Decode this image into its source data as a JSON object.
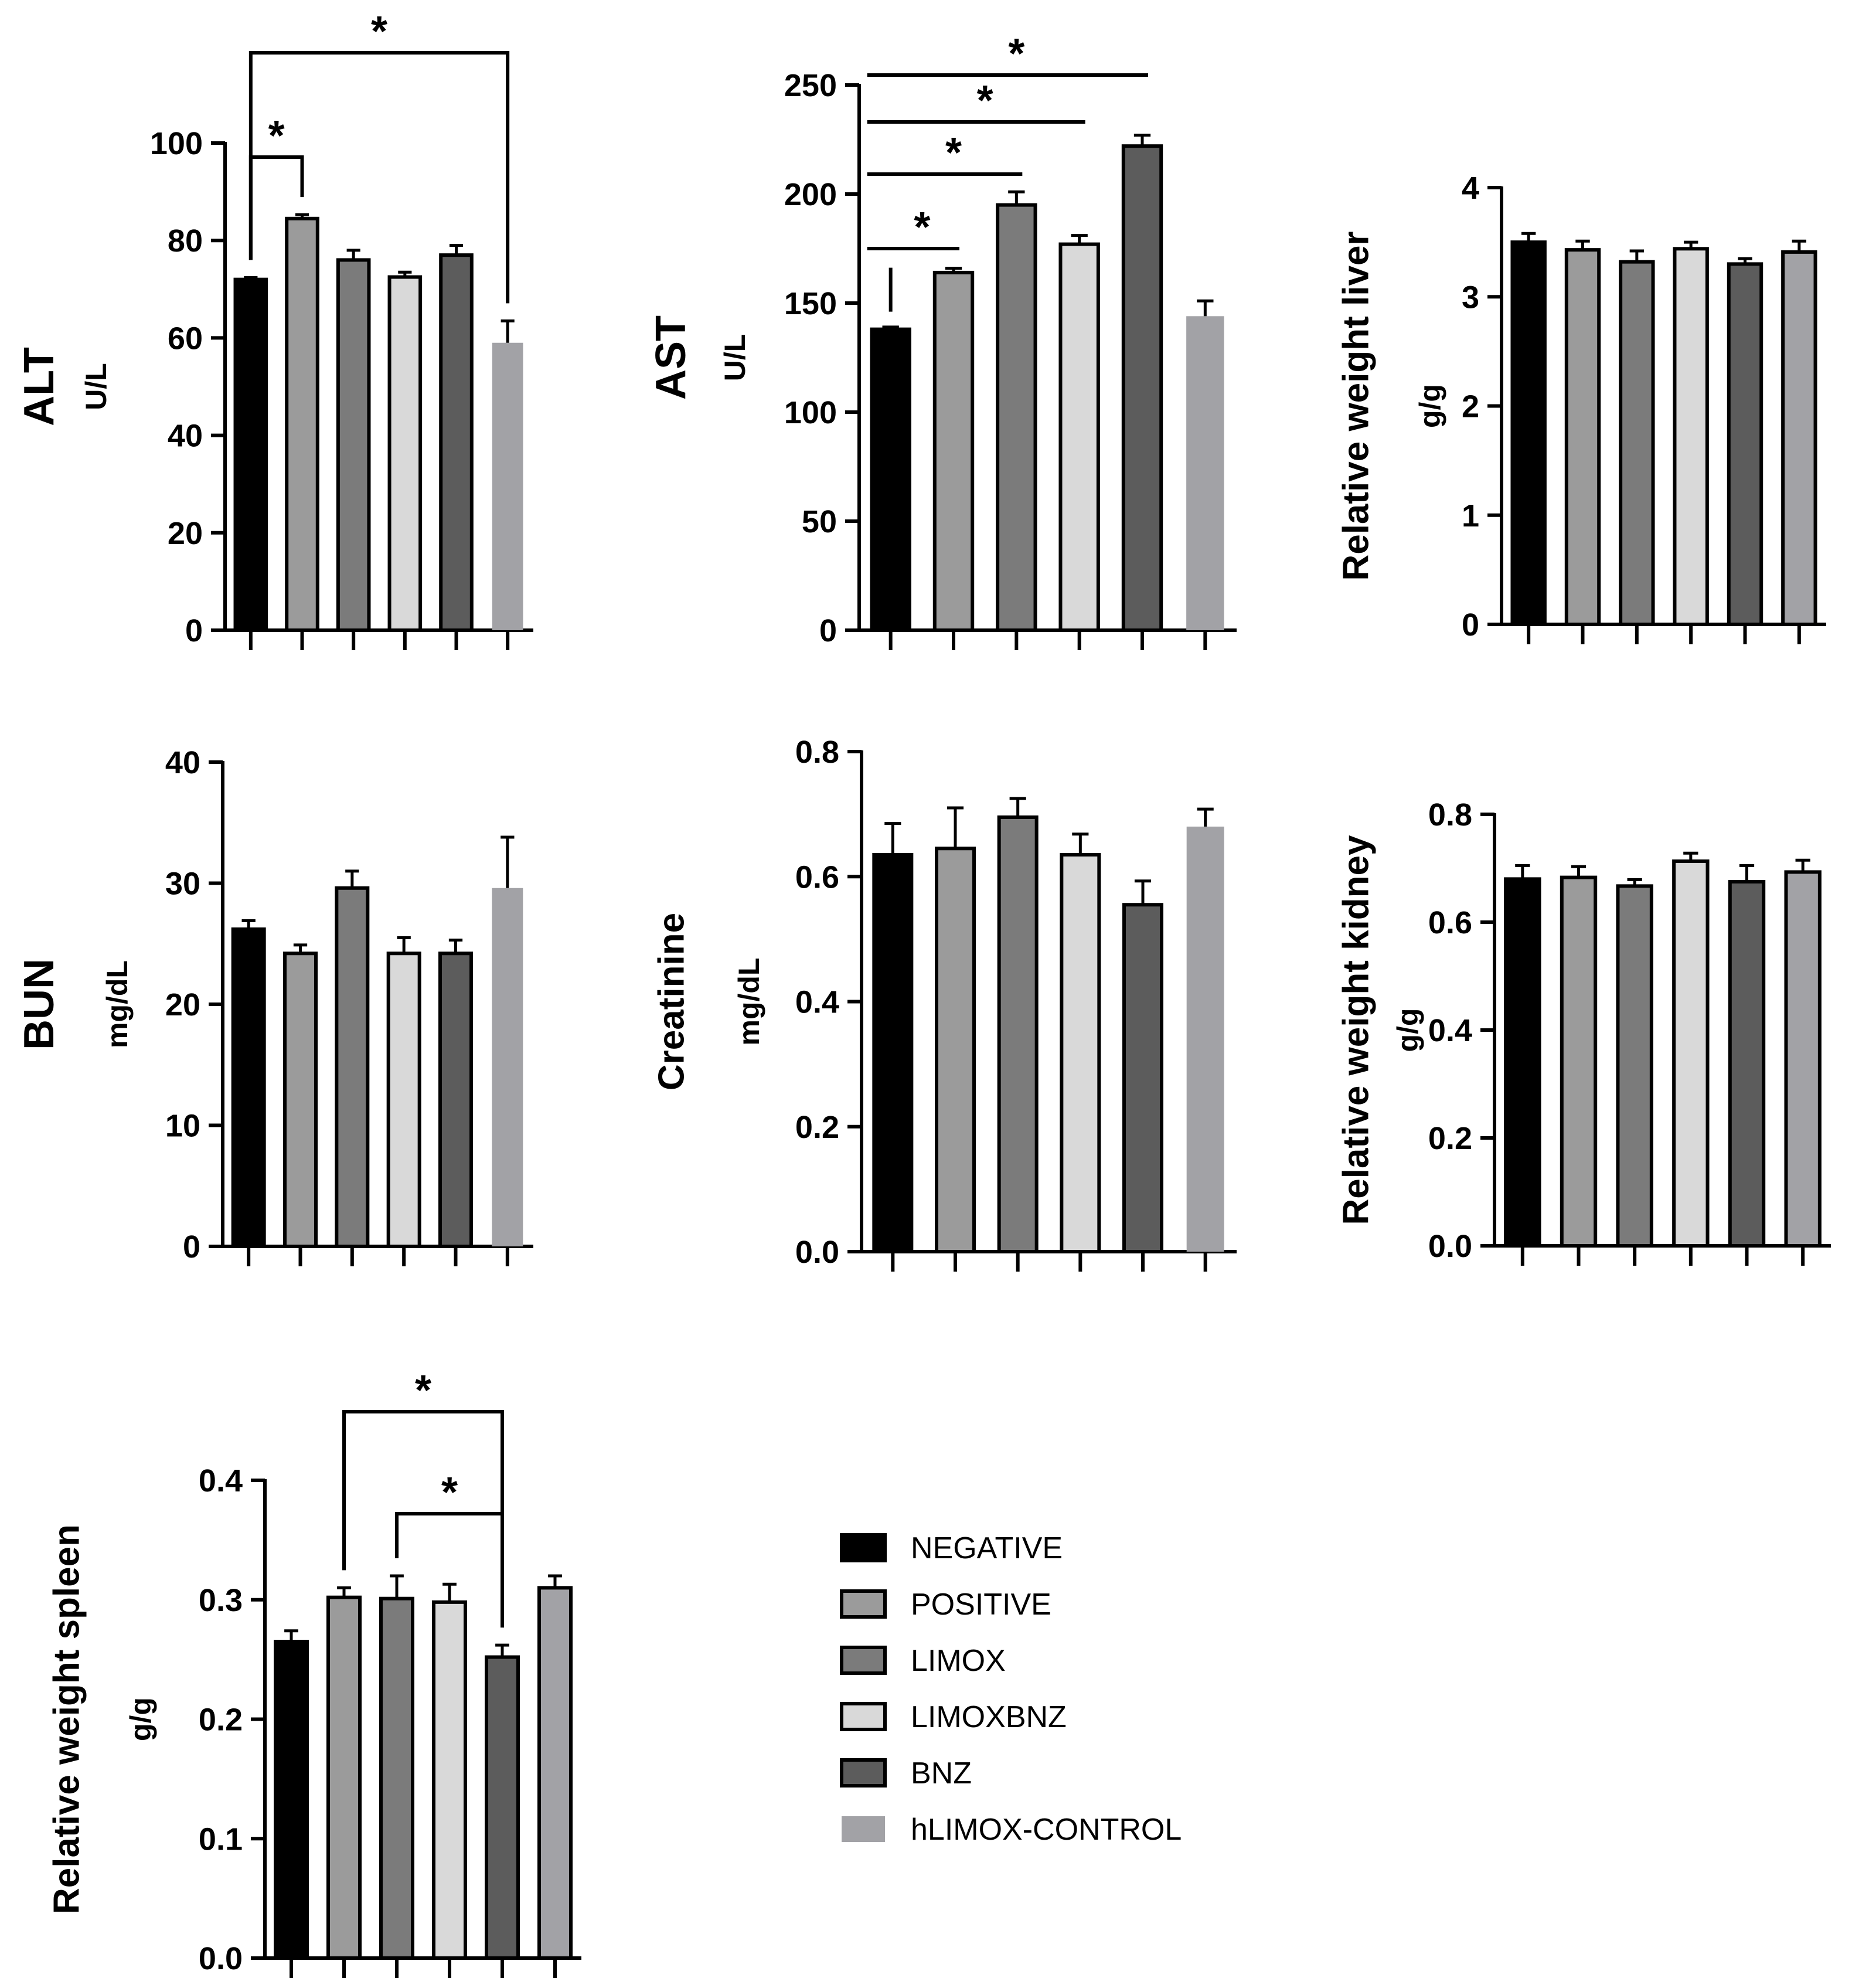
{
  "groups": [
    "NEGATIVE",
    "POSITIVE",
    "LIMOX",
    "LIMOXBNZ",
    "BNZ",
    "hLIMOX-CONTROL"
  ],
  "colors": {
    "NEGATIVE": "#000000",
    "POSITIVE": "#9b9b9b",
    "LIMOX": "#7b7b7b",
    "LIMOXBNZ": "#d9d9d9",
    "BNZ": "#5c5c5c",
    "hLIMOX-CONTROL": "#a2a2a6"
  },
  "legend": {
    "items": [
      "NEGATIVE",
      "POSITIVE",
      "LIMOX",
      "LIMOXBNZ",
      "BNZ",
      "hLIMOX-CONTROL"
    ]
  },
  "chart_data": [
    {
      "id": "alt",
      "type": "bar",
      "title": "ALT",
      "ylabel": "U/L",
      "categories": [
        "NEGATIVE",
        "POSITIVE",
        "LIMOX",
        "LIMOXBNZ",
        "BNZ",
        "hLIMOX-CONTROL"
      ],
      "values": [
        72,
        84.5,
        76,
        72.5,
        77,
        59
      ],
      "errors": [
        0.4,
        0.8,
        2,
        1,
        2,
        4.5
      ],
      "ylim": [
        0,
        100
      ],
      "yticks": [
        0,
        20,
        40,
        60,
        80,
        100
      ],
      "ytick_labels": [
        "0",
        "20",
        "40",
        "60",
        "80",
        "100"
      ],
      "significance": [
        {
          "from": 0,
          "to": 1,
          "label": "*"
        },
        {
          "from": 0,
          "to": 5,
          "label": "*"
        }
      ]
    },
    {
      "id": "ast",
      "type": "bar",
      "title": "AST",
      "ylabel": "U/L",
      "categories": [
        "NEGATIVE",
        "POSITIVE",
        "LIMOX",
        "LIMOXBNZ",
        "BNZ",
        "hLIMOX-CONTROL"
      ],
      "values": [
        138,
        164,
        195,
        177,
        222,
        144
      ],
      "errors": [
        1,
        2,
        6,
        4,
        5,
        7
      ],
      "ylim": [
        0,
        250
      ],
      "yticks": [
        0,
        50,
        100,
        150,
        200,
        250
      ],
      "ytick_labels": [
        "0",
        "50",
        "100",
        "150",
        "200",
        "250"
      ],
      "significance": [
        {
          "from": 0,
          "to": 1,
          "label": "*"
        },
        {
          "from": 0,
          "to": 2,
          "label": "*"
        },
        {
          "from": 0,
          "to": 3,
          "label": "*"
        },
        {
          "from": 0,
          "to": 4,
          "label": "*"
        }
      ]
    },
    {
      "id": "liver",
      "type": "bar",
      "title": "Relative weight liver",
      "ylabel": "g/g",
      "categories": [
        "NEGATIVE",
        "POSITIVE",
        "LIMOX",
        "LIMOXBNZ",
        "BNZ",
        "hLIMOX-CONTROL"
      ],
      "values": [
        3.5,
        3.43,
        3.32,
        3.44,
        3.3,
        3.41
      ],
      "errors": [
        0.08,
        0.08,
        0.1,
        0.06,
        0.05,
        0.1
      ],
      "ylim": [
        0,
        4
      ],
      "yticks": [
        0,
        1,
        2,
        3,
        4
      ],
      "ytick_labels": [
        "0",
        "1",
        "2",
        "3",
        "4"
      ],
      "significance": []
    },
    {
      "id": "bun",
      "type": "bar",
      "title": "BUN",
      "ylabel": "mg/dL",
      "categories": [
        "NEGATIVE",
        "POSITIVE",
        "LIMOX",
        "LIMOXBNZ",
        "BNZ",
        "hLIMOX-CONTROL"
      ],
      "values": [
        26.2,
        24.2,
        29.6,
        24.2,
        24.2,
        29.6
      ],
      "errors": [
        0.7,
        0.7,
        1.4,
        1.3,
        1.1,
        4.2
      ],
      "ylim": [
        0,
        40
      ],
      "yticks": [
        0,
        10,
        20,
        30,
        40
      ],
      "ytick_labels": [
        "0",
        "10",
        "20",
        "30",
        "40"
      ],
      "significance": []
    },
    {
      "id": "creatinine",
      "type": "bar",
      "title": "Creatinine",
      "ylabel": "mg/dL",
      "categories": [
        "NEGATIVE",
        "POSITIVE",
        "LIMOX",
        "LIMOXBNZ",
        "BNZ",
        "hLIMOX-CONTROL"
      ],
      "values": [
        0.635,
        0.645,
        0.695,
        0.635,
        0.555,
        0.68
      ],
      "errors": [
        0.05,
        0.065,
        0.03,
        0.033,
        0.038,
        0.028
      ],
      "ylim": [
        0,
        0.8
      ],
      "yticks": [
        0,
        0.2,
        0.4,
        0.6,
        0.8
      ],
      "ytick_labels": [
        "0.0",
        "0.2",
        "0.4",
        "0.6",
        "0.8"
      ],
      "significance": []
    },
    {
      "id": "kidney",
      "type": "bar",
      "title": "Relative weight kidney",
      "ylabel": "g/g",
      "categories": [
        "NEGATIVE",
        "POSITIVE",
        "LIMOX",
        "LIMOXBNZ",
        "BNZ",
        "hLIMOX-CONTROL"
      ],
      "values": [
        0.68,
        0.683,
        0.667,
        0.713,
        0.675,
        0.693
      ],
      "errors": [
        0.025,
        0.02,
        0.012,
        0.015,
        0.03,
        0.022
      ],
      "ylim": [
        0,
        0.8
      ],
      "yticks": [
        0,
        0.2,
        0.4,
        0.6,
        0.8
      ],
      "ytick_labels": [
        "0.0",
        "0.2",
        "0.4",
        "0.6",
        "0.8"
      ],
      "significance": []
    },
    {
      "id": "spleen",
      "type": "bar",
      "title": "Relative weight spleen",
      "ylabel": "g/g",
      "categories": [
        "NEGATIVE",
        "POSITIVE",
        "LIMOX",
        "LIMOXBNZ",
        "BNZ",
        "hLIMOX-CONTROL"
      ],
      "values": [
        0.265,
        0.302,
        0.301,
        0.298,
        0.252,
        0.31
      ],
      "errors": [
        0.009,
        0.008,
        0.019,
        0.015,
        0.01,
        0.01
      ],
      "ylim": [
        0,
        0.4
      ],
      "yticks": [
        0,
        0.1,
        0.2,
        0.3,
        0.4
      ],
      "ytick_labels": [
        "0.0",
        "0.1",
        "0.2",
        "0.3",
        "0.4"
      ],
      "significance": [
        {
          "from": 1,
          "to": 4,
          "label": "*"
        },
        {
          "from": 2,
          "to": 4,
          "label": "*"
        }
      ]
    }
  ]
}
